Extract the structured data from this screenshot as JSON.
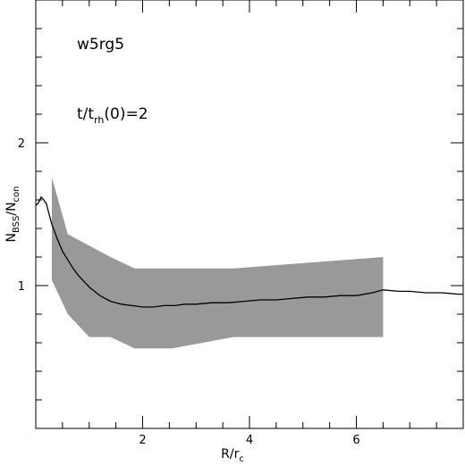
{
  "chart_data": {
    "type": "line",
    "model_label": "w5rg5",
    "time_label": {
      "main": "t/t",
      "sub": "rh",
      "rest": "(0)=2"
    },
    "xlabel": {
      "main": "R/r",
      "sub": "c"
    },
    "ylabel": {
      "main1": "N",
      "sub1": "BSS",
      "main2": "/N",
      "sub2": "con"
    },
    "xlim": [
      0,
      8
    ],
    "ylim": [
      0,
      3
    ],
    "x_ticks": [
      2,
      4,
      6
    ],
    "y_ticks": [
      1,
      2
    ],
    "x_minor_step": 0.5,
    "y_minor_step": 0.2,
    "band": {
      "x": [
        0.3,
        0.6,
        1.0,
        1.4,
        1.85,
        2.55,
        3.7,
        6.5
      ],
      "upper": [
        1.76,
        1.36,
        1.28,
        1.2,
        1.12,
        1.12,
        1.12,
        1.2
      ],
      "lower": [
        1.04,
        0.8,
        0.64,
        0.64,
        0.56,
        0.56,
        0.64,
        0.64
      ]
    },
    "series": [
      {
        "x": [
          0.0,
          0.05,
          0.1,
          0.15,
          0.2,
          0.25,
          0.3,
          0.4,
          0.5,
          0.6,
          0.7,
          0.8,
          0.9,
          1.0,
          1.2,
          1.4,
          1.6,
          1.8,
          2.0,
          2.2,
          2.4,
          2.6,
          2.8,
          3.0,
          3.3,
          3.6,
          3.9,
          4.2,
          4.5,
          4.8,
          5.1,
          5.4,
          5.7,
          6.0,
          6.3,
          6.5,
          6.8,
          7.0,
          7.3,
          7.6,
          7.9,
          8.0
        ],
        "y": [
          1.56,
          1.58,
          1.62,
          1.6,
          1.57,
          1.5,
          1.43,
          1.33,
          1.24,
          1.18,
          1.12,
          1.07,
          1.03,
          0.99,
          0.93,
          0.89,
          0.87,
          0.86,
          0.85,
          0.85,
          0.86,
          0.86,
          0.87,
          0.87,
          0.88,
          0.88,
          0.89,
          0.9,
          0.9,
          0.91,
          0.92,
          0.92,
          0.93,
          0.93,
          0.95,
          0.97,
          0.96,
          0.96,
          0.95,
          0.95,
          0.94,
          0.94
        ]
      }
    ]
  }
}
